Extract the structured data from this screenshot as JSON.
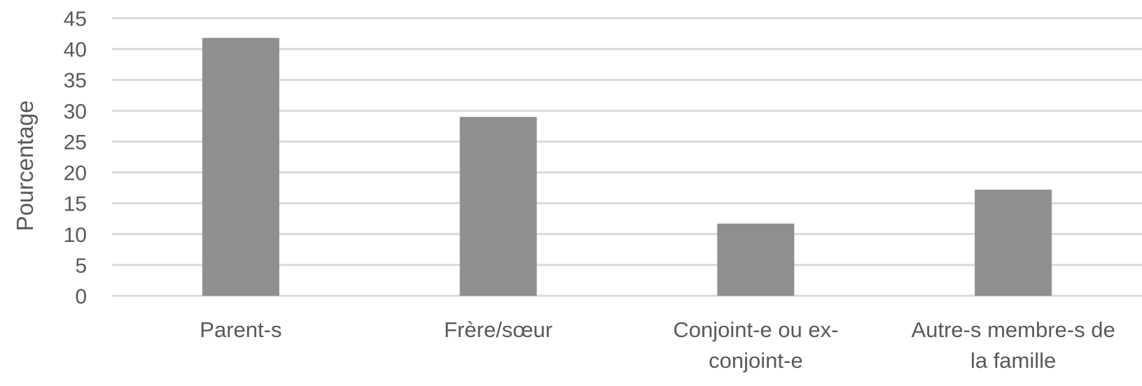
{
  "chart_data": {
    "type": "bar",
    "title": "",
    "xlabel": "",
    "ylabel": "Pourcentage",
    "categories": [
      [
        "Parent-s"
      ],
      [
        "Frère/sœur"
      ],
      [
        "Conjoint-e ou ex-",
        "conjoint-e"
      ],
      [
        "Autre-s membre-s de",
        "la famille"
      ]
    ],
    "values": [
      41.8,
      29.0,
      11.7,
      17.2
    ],
    "ylim": [
      0,
      45
    ],
    "yticks": [
      "0",
      "5",
      "10",
      "15",
      "20",
      "25",
      "30",
      "35",
      "40",
      "45"
    ],
    "grid": true,
    "legend": "none",
    "colors": {
      "bar": "#8f8f8f",
      "grid": "#d9d9d9",
      "text": "#595959"
    }
  }
}
